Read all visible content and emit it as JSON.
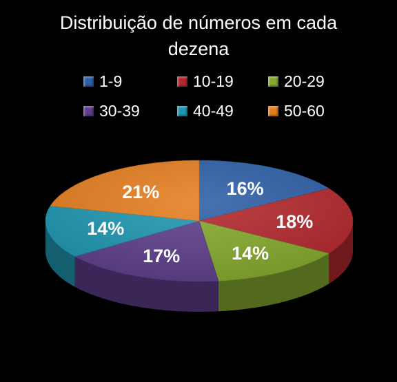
{
  "chart_data": {
    "type": "pie",
    "title": "Distribuição de números em cada dezena",
    "title_lines": [
      "Distribuição de números em cada",
      "dezena"
    ],
    "style": "3d",
    "legend_position": "top",
    "categories": [
      "1-9",
      "10-19",
      "20-29",
      "30-39",
      "40-49",
      "50-60"
    ],
    "values": [
      16,
      18,
      14,
      17,
      14,
      21
    ],
    "labels": [
      "16%",
      "18%",
      "14%",
      "17%",
      "14%",
      "21%"
    ],
    "colors": [
      "#2e5fa8",
      "#b3282d",
      "#86a92e",
      "#5e3f8c",
      "#1f97b3",
      "#e67e1f"
    ]
  }
}
